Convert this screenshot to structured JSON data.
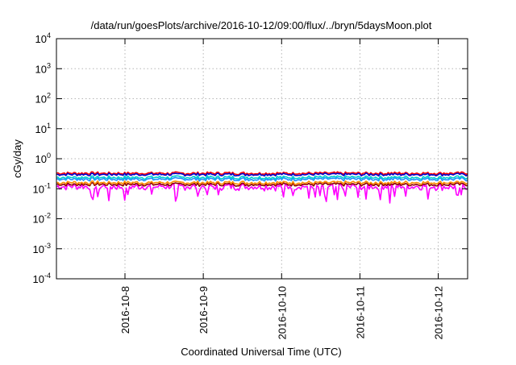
{
  "chart_data": {
    "type": "line",
    "title": "/data/run/goesPlots/archive/2016-10-12/09:00/flux/../bryn/5daysMoon.plot",
    "xlabel": "Coordinated Universal Time (UTC)",
    "ylabel": "cGy/day",
    "yscale": "log",
    "ylim": [
      0.0001,
      10000
    ],
    "xlim": [
      "2016-10-07 03:00",
      "2016-10-12 09:00"
    ],
    "grid": true,
    "x_ticks": [
      "2016-10-8",
      "2016-10-9",
      "2016-10-10",
      "2016-10-11",
      "2016-10-12"
    ],
    "y_ticks": [
      {
        "mant": "10",
        "exp": "-4"
      },
      {
        "mant": "10",
        "exp": "-3"
      },
      {
        "mant": "10",
        "exp": "-2"
      },
      {
        "mant": "10",
        "exp": "-1"
      },
      {
        "mant": "10",
        "exp": "0"
      },
      {
        "mant": "10",
        "exp": "1"
      },
      {
        "mant": "10",
        "exp": "2"
      },
      {
        "mant": "10",
        "exp": "3"
      },
      {
        "mant": "10",
        "exp": "4"
      }
    ],
    "series": [
      {
        "color": "#ff00ff",
        "baseline": 0.12,
        "variation": 0.25,
        "dips": true
      },
      {
        "color": "#8b0000",
        "baseline": 0.14,
        "variation": 0.12,
        "dips": false
      },
      {
        "color": "#ff8c00",
        "baseline": 0.16,
        "variation": 0.12,
        "dips": false
      },
      {
        "color": "#1e90ff",
        "baseline": 0.21,
        "variation": 0.12,
        "dips": false
      },
      {
        "color": "#00ced1",
        "baseline": 0.24,
        "variation": 0.12,
        "dips": false
      },
      {
        "color": "#ff0000",
        "baseline": 0.33,
        "variation": 0.1,
        "dips": false
      },
      {
        "color": "#0000cd",
        "baseline": 0.3,
        "variation": 0.1,
        "dips": false
      }
    ]
  }
}
